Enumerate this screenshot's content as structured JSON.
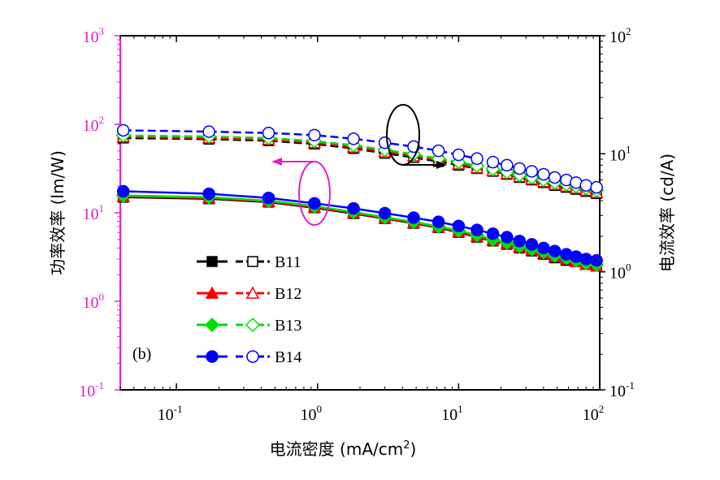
{
  "chart_data": {
    "type": "line",
    "panel_label": "(b)",
    "x_axis": {
      "label": "电流密度 (mA/cm",
      "label_sup": "2",
      "label_close": ")",
      "scale": "log",
      "range": [
        0.04,
        100
      ],
      "ticks": [
        {
          "base": "10",
          "exp": "-1",
          "value": 0.1
        },
        {
          "base": "10",
          "exp": "0",
          "value": 1
        },
        {
          "base": "10",
          "exp": "1",
          "value": 10
        },
        {
          "base": "10",
          "exp": "2",
          "value": 100
        }
      ]
    },
    "y_left": {
      "label": "功率效率 (lm/W)",
      "scale": "log",
      "range": [
        0.1,
        1000
      ],
      "color": "#e020d0",
      "ticks": [
        {
          "base": "10",
          "exp": "-1",
          "value": 0.1
        },
        {
          "base": "10",
          "exp": "0",
          "value": 1
        },
        {
          "base": "10",
          "exp": "1",
          "value": 10
        },
        {
          "base": "10",
          "exp": "2",
          "value": 100
        },
        {
          "base": "10",
          "exp": "3",
          "value": 1000
        }
      ]
    },
    "y_right": {
      "label": "电流效率 (cd/A)",
      "scale": "log",
      "range": [
        0.1,
        100
      ],
      "color": "#000000",
      "ticks": [
        {
          "base": "10",
          "exp": "-1",
          "value": 0.1
        },
        {
          "base": "10",
          "exp": "0",
          "value": 1
        },
        {
          "base": "10",
          "exp": "1",
          "value": 10
        },
        {
          "base": "10",
          "exp": "2",
          "value": 100
        }
      ]
    },
    "x": [
      0.042,
      0.17,
      0.45,
      0.95,
      1.8,
      3.0,
      4.8,
      7.2,
      10,
      13.5,
      17.5,
      22,
      27,
      33,
      40,
      48,
      58,
      68,
      80,
      95
    ],
    "series": [
      {
        "name": "B11",
        "color": "#000000",
        "marker": "square",
        "pe": [
          15.0,
          14.4,
          13.2,
          11.4,
          9.8,
          8.6,
          7.6,
          6.8,
          6.0,
          5.3,
          4.8,
          4.4,
          4.0,
          3.7,
          3.4,
          3.1,
          2.9,
          2.8,
          2.6,
          2.5
        ],
        "ce": [
          13.6,
          13.3,
          12.9,
          12.1,
          11.1,
          10.1,
          9.3,
          8.6,
          8.0,
          7.5,
          7.1,
          6.7,
          6.3,
          6.0,
          5.7,
          5.4,
          5.2,
          5.0,
          4.8,
          4.6
        ]
      },
      {
        "name": "B12",
        "color": "#ff0000",
        "marker": "triangle",
        "pe": [
          15.3,
          14.7,
          13.4,
          11.6,
          10.0,
          8.7,
          7.7,
          6.9,
          6.1,
          5.4,
          4.9,
          4.5,
          4.1,
          3.8,
          3.5,
          3.2,
          3.0,
          2.8,
          2.6,
          2.5
        ],
        "ce": [
          13.9,
          13.6,
          13.2,
          12.4,
          11.4,
          10.4,
          9.6,
          8.8,
          8.2,
          7.6,
          7.2,
          6.8,
          6.4,
          6.1,
          5.8,
          5.5,
          5.3,
          5.1,
          4.9,
          4.7
        ]
      },
      {
        "name": "B13",
        "color": "#00e000",
        "marker": "diamond",
        "pe": [
          15.7,
          15.0,
          13.7,
          11.9,
          10.2,
          8.9,
          7.9,
          7.0,
          6.3,
          5.6,
          5.0,
          4.6,
          4.2,
          3.9,
          3.6,
          3.3,
          3.1,
          2.9,
          2.7,
          2.6
        ],
        "ce": [
          14.3,
          14.0,
          13.6,
          12.8,
          11.8,
          10.8,
          9.9,
          9.1,
          8.5,
          7.9,
          7.4,
          7.0,
          6.6,
          6.3,
          6.0,
          5.7,
          5.5,
          5.3,
          5.1,
          4.9
        ]
      },
      {
        "name": "B14",
        "color": "#0000ff",
        "marker": "circle",
        "pe": [
          17.5,
          16.4,
          14.7,
          12.8,
          11.2,
          9.9,
          8.8,
          7.9,
          7.1,
          6.4,
          5.8,
          5.3,
          4.8,
          4.4,
          4.0,
          3.7,
          3.4,
          3.2,
          3.0,
          2.9
        ],
        "ce": [
          15.8,
          15.4,
          15.0,
          14.4,
          13.4,
          12.4,
          11.5,
          10.6,
          9.8,
          9.1,
          8.5,
          8.0,
          7.5,
          7.1,
          6.7,
          6.3,
          6.0,
          5.7,
          5.4,
          5.2
        ]
      }
    ]
  }
}
